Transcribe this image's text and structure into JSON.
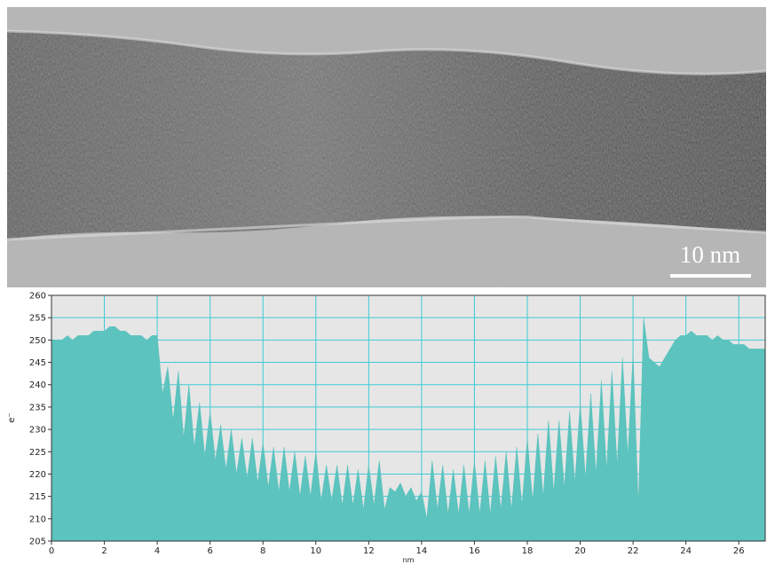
{
  "image": {
    "scale_bar_label": "10 nm"
  },
  "chart_data": {
    "type": "area",
    "x_label": "nm",
    "y_label": "e⁻",
    "xlim": [
      0,
      27
    ],
    "ylim": [
      205,
      260
    ],
    "xticks": [
      0,
      2,
      4,
      6,
      8,
      10,
      12,
      14,
      16,
      18,
      20,
      22,
      24,
      26
    ],
    "yticks": [
      205,
      210,
      215,
      220,
      225,
      230,
      235,
      240,
      245,
      250,
      255,
      260
    ],
    "grid": true,
    "grid_color": "#3ccbd6",
    "background": "#e6e6e6",
    "color": "#5cc3be",
    "x": [
      0,
      0.2,
      0.4,
      0.6,
      0.8,
      1,
      1.2,
      1.4,
      1.6,
      1.8,
      2,
      2.2,
      2.4,
      2.6,
      2.8,
      3,
      3.2,
      3.4,
      3.6,
      3.8,
      4,
      4.2,
      4.4,
      4.6,
      4.8,
      5,
      5.2,
      5.4,
      5.6,
      5.8,
      6,
      6.2,
      6.4,
      6.6,
      6.8,
      7,
      7.2,
      7.4,
      7.6,
      7.8,
      8,
      8.2,
      8.4,
      8.6,
      8.8,
      9,
      9.2,
      9.4,
      9.6,
      9.8,
      10,
      10.2,
      10.4,
      10.6,
      10.8,
      11,
      11.2,
      11.4,
      11.6,
      11.8,
      12,
      12.2,
      12.4,
      12.6,
      12.8,
      13,
      13.2,
      13.4,
      13.6,
      13.8,
      14,
      14.2,
      14.4,
      14.6,
      14.8,
      15,
      15.2,
      15.4,
      15.6,
      15.8,
      16,
      16.2,
      16.4,
      16.6,
      16.8,
      17,
      17.2,
      17.4,
      17.6,
      17.8,
      18,
      18.2,
      18.4,
      18.6,
      18.8,
      19,
      19.2,
      19.4,
      19.6,
      19.8,
      20,
      20.2,
      20.4,
      20.6,
      20.8,
      21,
      21.2,
      21.4,
      21.6,
      21.8,
      22,
      22.2,
      22.4,
      22.6,
      22.8,
      23,
      23.2,
      23.4,
      23.6,
      23.8,
      24,
      24.2,
      24.4,
      24.6,
      24.8,
      25,
      25.2,
      25.4,
      25.6,
      25.8,
      26,
      26.2,
      26.4,
      26.6,
      26.8,
      27
    ],
    "values": [
      250,
      250,
      250,
      251,
      250,
      251,
      251,
      251,
      252,
      252,
      252,
      253,
      253,
      252,
      252,
      251,
      251,
      251,
      250,
      251,
      251,
      238,
      244,
      232,
      243,
      228,
      240,
      226,
      236,
      224,
      234,
      223,
      231,
      221,
      230,
      220,
      228,
      219,
      228,
      218,
      227,
      217,
      226,
      216,
      226,
      216,
      225,
      215,
      224,
      215,
      225,
      214,
      222,
      214,
      222,
      213,
      222,
      213,
      221,
      212,
      222,
      213,
      223,
      212,
      217,
      216,
      218,
      215,
      217,
      214,
      216,
      210,
      223,
      212,
      222,
      211,
      221,
      211,
      222,
      211,
      223,
      211,
      223,
      211,
      224,
      212,
      225,
      212,
      226,
      213,
      228,
      214,
      229,
      215,
      232,
      216,
      232,
      217,
      234,
      218,
      236,
      219,
      238,
      220,
      241,
      221,
      243,
      222,
      246,
      224,
      247,
      213,
      255,
      246,
      245,
      244,
      246,
      248,
      250,
      251,
      251,
      252,
      251,
      251,
      251,
      250,
      251,
      250,
      250,
      249,
      249,
      249,
      248,
      248,
      248,
      248
    ]
  }
}
